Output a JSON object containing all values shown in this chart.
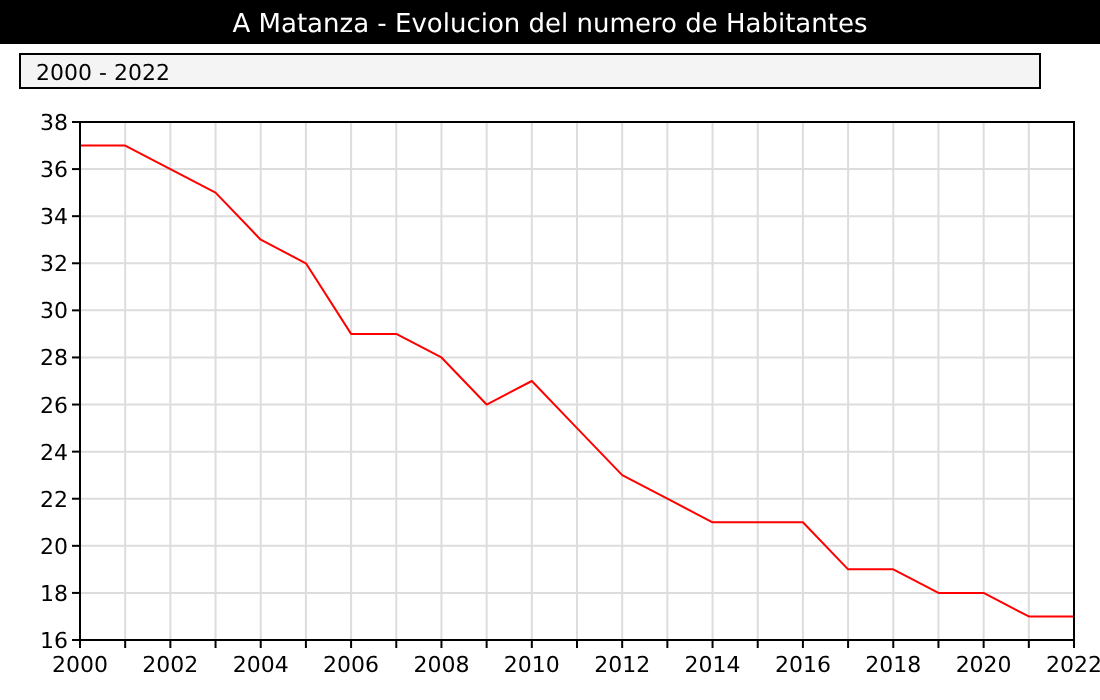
{
  "chart_data": {
    "type": "line",
    "title": "A Matanza - Evolucion del numero de Habitantes",
    "annotations": [
      "2000 - 2022"
    ],
    "x": [
      2000,
      2001,
      2002,
      2003,
      2004,
      2005,
      2006,
      2007,
      2008,
      2009,
      2010,
      2011,
      2012,
      2013,
      2014,
      2015,
      2016,
      2017,
      2018,
      2019,
      2020,
      2021,
      2022
    ],
    "series": [
      {
        "color": "#ff0000",
        "values": [
          37,
          37,
          36,
          35,
          33,
          32,
          29,
          29,
          28,
          26,
          27,
          25,
          23,
          22,
          21,
          21,
          21,
          19,
          19,
          18,
          18,
          17,
          17
        ]
      }
    ],
    "xlim": [
      2000,
      2022
    ],
    "xticks": [
      2000,
      {
        "value": 2001,
        "label": null
      },
      2002,
      {
        "value": 2003,
        "label": null
      },
      2004,
      {
        "value": 2005,
        "label": null
      },
      2006,
      {
        "value": 2007,
        "label": null
      },
      2008,
      {
        "value": 2009,
        "label": null
      },
      2010,
      {
        "value": 2011,
        "label": null
      },
      2012,
      {
        "value": 2013,
        "label": null
      },
      2014,
      {
        "value": 2015,
        "label": null
      },
      2016,
      {
        "value": 2017,
        "label": null
      },
      2018,
      {
        "value": 2019,
        "label": null
      },
      2020,
      {
        "value": 2021,
        "label": null
      },
      2022
    ],
    "ylim": [
      16,
      38
    ],
    "yticks": [
      16,
      18,
      20,
      22,
      24,
      26,
      28,
      30,
      32,
      34,
      36,
      38
    ],
    "grid": true,
    "marker": "none",
    "line_style": "solid"
  }
}
